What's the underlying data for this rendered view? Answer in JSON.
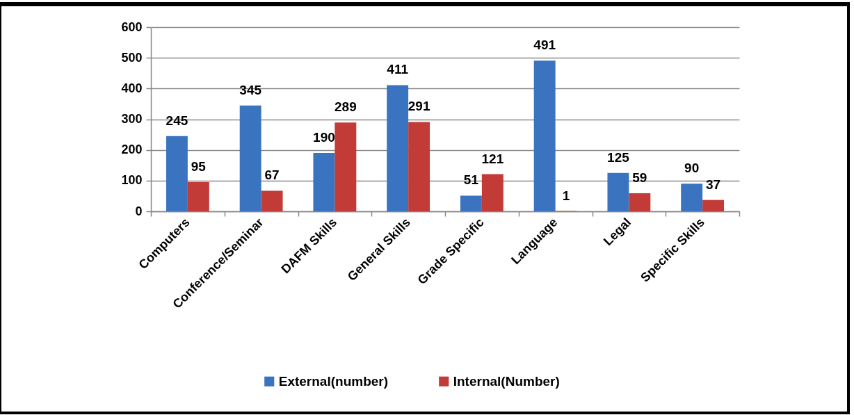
{
  "chart_data": {
    "type": "bar",
    "categories": [
      "Computers",
      "Conference/Seminar",
      "DAFM Skills",
      "General Skills",
      "Grade Specific",
      "Language",
      "Legal",
      "Specific Skills"
    ],
    "series": [
      {
        "name": "External(number)",
        "color": "#3a74c0",
        "values": [
          245,
          345,
          190,
          411,
          51,
          491,
          125,
          90
        ]
      },
      {
        "name": "Internal(Number)",
        "color": "#c23b37",
        "values": [
          95,
          67,
          289,
          291,
          121,
          1,
          59,
          37
        ]
      }
    ],
    "ylim": [
      0,
      600
    ],
    "yticks": [
      0,
      100,
      200,
      300,
      400,
      500,
      600
    ],
    "grid": "y",
    "legend": "bottom",
    "data_labels": true
  }
}
